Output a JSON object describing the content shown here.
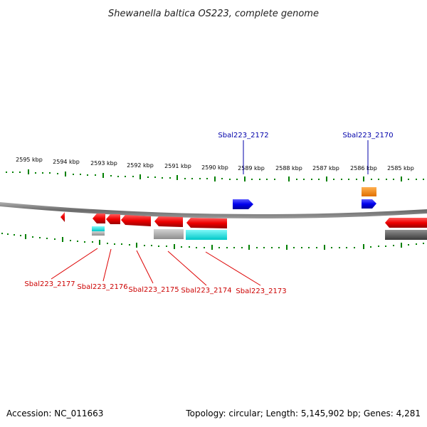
{
  "title": "Shewanella baltica OS223, complete genome",
  "footer": {
    "accession": "Accession: NC_011663",
    "topology": "Topology: circular; Length: 5,145,902 bp; Genes: 4,281"
  },
  "kbp_ticks": [
    "2595 kbp",
    "2594 kbp",
    "2593 kbp",
    "2592 kbp",
    "2591 kbp",
    "2590 kbp",
    "2589 kbp",
    "2588 kbp",
    "2587 kbp",
    "2586 kbp",
    "2585 kbp"
  ],
  "labels": {
    "top": [
      "Sbal223_2172",
      "Sbal223_2170"
    ],
    "bottom": [
      "Sbal223_2177",
      "Sbal223_2176",
      "Sbal223_2175",
      "Sbal223_2174",
      "Sbal223_2173"
    ]
  },
  "colors": {
    "forward_gene": "#0000ee",
    "reverse_gene": "#ee0000",
    "orange_feature": "#ff8800",
    "cyan_feature": "#00e0e0",
    "grey_feature": "#a8a8a8",
    "dark_feature": "#555555",
    "tick": "#008000",
    "backbone": "#777777"
  }
}
